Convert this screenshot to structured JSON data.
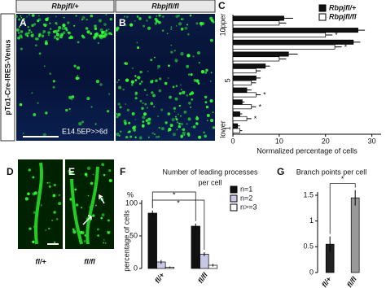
{
  "figure": {
    "row_label": "pTα1-Cre-IRES-Venus",
    "condition": "E14.5EP>>6d",
    "headers": [
      "Rbpjfl/+",
      "Rbpjfl/fl"
    ],
    "letters": [
      "A",
      "B",
      "C",
      "D",
      "E",
      "F",
      "G"
    ],
    "genotypes": [
      "fl/+",
      "fl/fl"
    ]
  },
  "chart_data": [
    {
      "type": "hbar",
      "top_label": "upper",
      "bottom_label": "lower",
      "x_label": "Normalized percentage of cells",
      "categories": [
        "10",
        null,
        null,
        null,
        null,
        "5",
        null,
        null,
        null,
        "1"
      ],
      "series": [
        {
          "name": "Rbpjfl/+",
          "color": "#111111",
          "values": [
            11,
            27,
            26,
            12,
            7,
            5,
            3,
            2,
            1.5,
            1
          ],
          "errors": [
            2,
            1.5,
            1.5,
            2,
            1,
            1,
            1,
            0.5,
            0.5,
            0.5
          ]
        },
        {
          "name": "Rbpjfl/fl",
          "color": "#ffffff",
          "values": [
            10,
            20,
            22,
            10,
            5,
            4,
            5,
            4,
            3,
            1.5
          ],
          "errors": [
            1.5,
            1.5,
            1.5,
            1.5,
            1,
            1,
            1,
            1,
            1,
            0.5
          ]
        }
      ],
      "annotations": [
        {
          "text": "*",
          "category": 1
        },
        {
          "text": "*",
          "category": 2
        },
        {
          "text": "*",
          "category": 6
        },
        {
          "text": "*",
          "category": 7
        },
        {
          "text": "*",
          "category": 8
        }
      ],
      "xlim": [
        0,
        32
      ],
      "xticks": [
        0,
        10,
        20,
        30
      ]
    },
    {
      "type": "vbar",
      "title": "Number of leading processes",
      "subtitle": "per cell",
      "unit": "%",
      "y_label": "percentage of cells",
      "categories": [
        "fl/+",
        "fl/fl"
      ],
      "series": [
        {
          "name": "n=1",
          "color": "#111111",
          "values": [
            85,
            65
          ],
          "errors": [
            4,
            4
          ]
        },
        {
          "name": "n=2",
          "color": "#c8c8e6",
          "values": [
            10,
            22
          ],
          "errors": [
            3,
            3
          ]
        },
        {
          "name": "n>=3",
          "color": "#ffffff",
          "values": [
            2,
            5
          ],
          "errors": [
            1,
            2
          ]
        }
      ],
      "annotations": [
        "*",
        "*"
      ],
      "ylim": [
        0,
        100
      ],
      "yticks": [
        0,
        50,
        100
      ]
    },
    {
      "type": "vbar",
      "title": "Branch points per cell",
      "categories": [
        "fl/+",
        "fl/fl"
      ],
      "series": [
        {
          "colors": [
            "#222222",
            "#999999"
          ],
          "values": [
            0.55,
            1.45
          ],
          "errors": [
            0.15,
            0.15
          ]
        }
      ],
      "annotations": [
        "*"
      ],
      "ylim": [
        0,
        1.5
      ],
      "yticks": [
        0,
        0.5,
        1.0,
        1.5
      ]
    }
  ]
}
